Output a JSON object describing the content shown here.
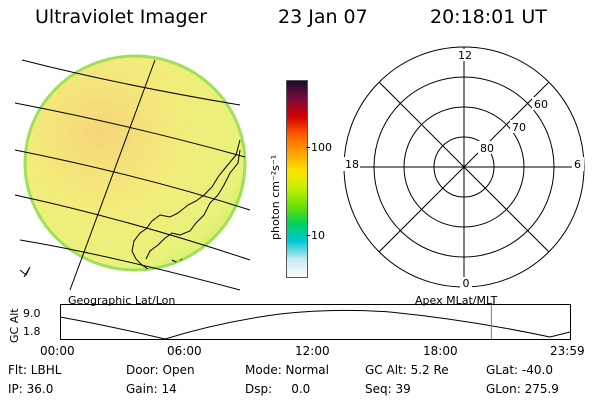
{
  "header": {
    "title": "Ultraviolet Imager",
    "date": "23 Jan 07",
    "time": "20:18:01 UT"
  },
  "image_panel": {
    "caption": "Geographic Lat/Lon"
  },
  "colorbar": {
    "unit_label": "photon cm⁻²s⁻¹",
    "ticks": [
      "100",
      "10"
    ],
    "colors": [
      "#1a0a2e",
      "#7b0a3a",
      "#d40000",
      "#ff5a00",
      "#ffa000",
      "#ffe000",
      "#c8f000",
      "#6ee000",
      "#00d25a",
      "#00c8d8",
      "#c8e8f0",
      "#ffffff"
    ]
  },
  "polar_plot": {
    "caption": "Apex MLat/MLT",
    "mlt_labels": {
      "top": "12",
      "left": "18",
      "right": "6",
      "bottom": "0"
    },
    "lat_labels": [
      "60",
      "70",
      "80"
    ]
  },
  "altitude_strip": {
    "ylabel": "GC Alt",
    "ymax_label": "9.0",
    "ymin_label": "1.8",
    "time_ticks": [
      "00:00",
      "06:00",
      "12:00",
      "18:00",
      "23:59"
    ],
    "current_marker_hours": 20.3,
    "marker_color": "#e05050"
  },
  "info": {
    "row1": [
      "Flt: LBHL",
      "Door: Open",
      "Mode: Normal",
      "GC Alt: 5.2 Re",
      "GLat: -40.0"
    ],
    "row2": [
      "IP: 36.0",
      "Gain: 14",
      "Dsp:     0.0",
      "Seq: 39",
      "GLon: 275.9"
    ]
  }
}
